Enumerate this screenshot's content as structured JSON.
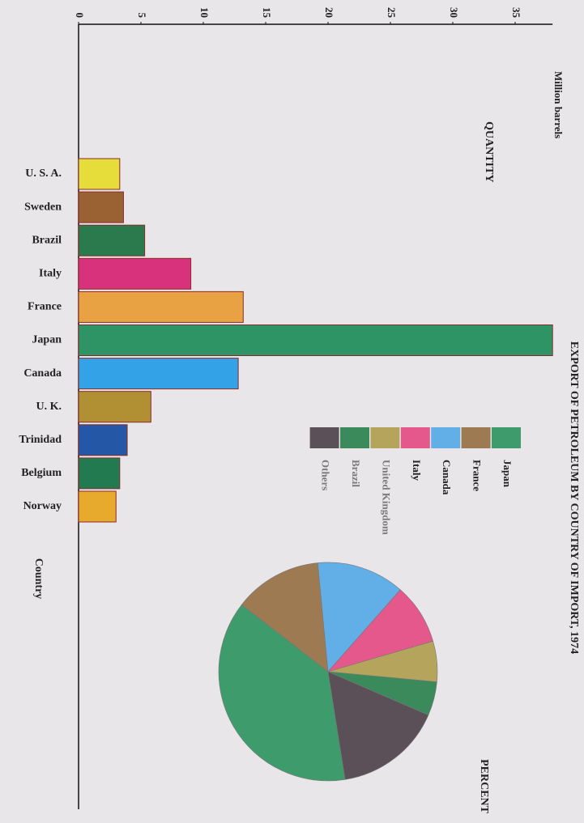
{
  "title": "EXPORT OF PETROLEUM BY COUNTRY OF IMPORT, 1974",
  "chart_data": [
    {
      "type": "bar",
      "title": "QUANTITY",
      "y_label": "Million barrels",
      "x_label": "Country",
      "categories": [
        "U. S. A.",
        "Sweden",
        "Brazil",
        "Italy",
        "France",
        "Japan",
        "Canada",
        "U. K.",
        "Trinidad",
        "Belgium",
        "Norway"
      ],
      "values": [
        3.3,
        3.6,
        5.3,
        9.0,
        13.2,
        38,
        12.8,
        5.8,
        3.9,
        3.3,
        3.0
      ],
      "colors": [
        "#e6dc3a",
        "#9a6232",
        "#2a7a4e",
        "#d8327c",
        "#e8a244",
        "#2e9466",
        "#34a2e6",
        "#b09032",
        "#2458a6",
        "#227a50",
        "#e8aa2c"
      ],
      "ylim": [
        0,
        38
      ],
      "yticks": [
        0,
        5,
        10,
        15,
        20,
        25,
        30,
        35
      ]
    },
    {
      "type": "pie",
      "title": "PERCENT",
      "categories": [
        "Japan",
        "France",
        "Canada",
        "Italy",
        "United Kingdom",
        "Brazil",
        "Others"
      ],
      "values": [
        38,
        13,
        13,
        9,
        6,
        5,
        16
      ],
      "colors": [
        "#3e9c6c",
        "#9e7a52",
        "#62aee6",
        "#e4588c",
        "#b4a45c",
        "#3a8a5c",
        "#5c5058"
      ]
    }
  ]
}
